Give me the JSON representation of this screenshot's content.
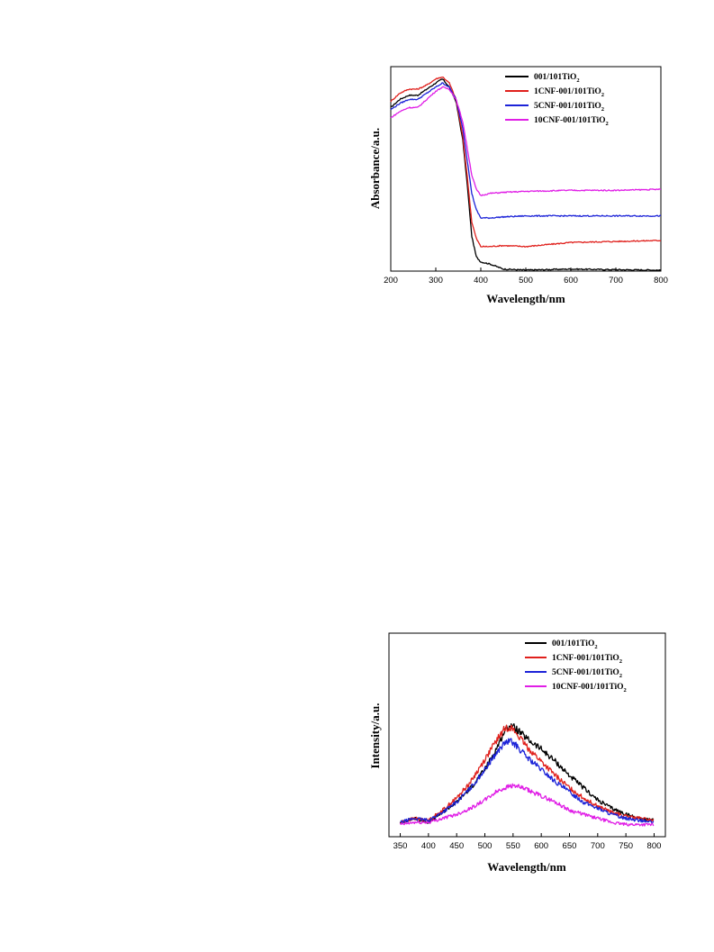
{
  "chart_data": [
    {
      "type": "line",
      "xlabel": "Wavelength/nm",
      "ylabel": "Absorbance/a.u.",
      "xlim": [
        200,
        800
      ],
      "xticks": [
        "200",
        "300",
        "400",
        "500",
        "600",
        "700",
        "800"
      ],
      "yticks": [],
      "ylim": [
        0,
        1
      ],
      "grid": false,
      "legend_position": "top-right",
      "series": [
        {
          "name": "001/101TiO2",
          "label_main": "001/101TiO",
          "label_sub": "2",
          "color": "#000000",
          "x": [
            200,
            220,
            240,
            260,
            280,
            300,
            315,
            330,
            345,
            360,
            370,
            380,
            390,
            400,
            420,
            450,
            500,
            600,
            700,
            800
          ],
          "y": [
            0.8,
            0.84,
            0.86,
            0.86,
            0.89,
            0.92,
            0.94,
            0.9,
            0.83,
            0.64,
            0.42,
            0.17,
            0.07,
            0.045,
            0.035,
            0.01,
            0.005,
            0.01,
            0.007,
            0.005
          ]
        },
        {
          "name": "1CNF-001/101TiO2",
          "label_main": "1CNF-001/101TiO",
          "label_sub": "2",
          "color": "#e0201c",
          "x": [
            200,
            220,
            240,
            260,
            280,
            300,
            315,
            330,
            345,
            360,
            370,
            380,
            390,
            400,
            420,
            450,
            500,
            600,
            700,
            800
          ],
          "y": [
            0.83,
            0.87,
            0.89,
            0.89,
            0.91,
            0.94,
            0.95,
            0.92,
            0.84,
            0.66,
            0.46,
            0.24,
            0.16,
            0.12,
            0.12,
            0.125,
            0.12,
            0.14,
            0.145,
            0.15
          ]
        },
        {
          "name": "5CNF-001/101TiO2",
          "label_main": "5CNF-001/101TiO",
          "label_sub": "2",
          "color": "#1c23d8",
          "x": [
            200,
            220,
            240,
            260,
            280,
            300,
            315,
            330,
            345,
            360,
            370,
            380,
            390,
            400,
            420,
            450,
            500,
            600,
            700,
            800
          ],
          "y": [
            0.79,
            0.82,
            0.84,
            0.84,
            0.87,
            0.9,
            0.92,
            0.9,
            0.84,
            0.7,
            0.54,
            0.38,
            0.3,
            0.26,
            0.26,
            0.265,
            0.27,
            0.27,
            0.27,
            0.27
          ]
        },
        {
          "name": "10CNF-001/101TiO2",
          "label_main": "10CNF-001/101TiO",
          "label_sub": "2",
          "color": "#e01ee6",
          "x": [
            200,
            220,
            240,
            260,
            280,
            300,
            315,
            330,
            345,
            360,
            370,
            380,
            390,
            400,
            420,
            450,
            500,
            600,
            700,
            800
          ],
          "y": [
            0.75,
            0.78,
            0.8,
            0.8,
            0.84,
            0.88,
            0.9,
            0.89,
            0.84,
            0.73,
            0.6,
            0.47,
            0.4,
            0.37,
            0.38,
            0.385,
            0.39,
            0.395,
            0.395,
            0.4
          ]
        }
      ]
    },
    {
      "type": "line",
      "xlabel": "Wavelength/nm",
      "ylabel": "Intensity/a.u.",
      "xlim": [
        330,
        820
      ],
      "xticks": [
        "350",
        "400",
        "450",
        "500",
        "550",
        "600",
        "650",
        "700",
        "750",
        "800"
      ],
      "yticks": [],
      "ylim": [
        0,
        1
      ],
      "grid": false,
      "legend_position": "top-right",
      "series": [
        {
          "name": "001/101TiO2",
          "label_main": "001/101TiO",
          "label_sub": "2",
          "color": "#000000",
          "x": [
            350,
            375,
            400,
            425,
            450,
            475,
            500,
            520,
            535,
            545,
            555,
            575,
            600,
            625,
            650,
            675,
            700,
            725,
            750,
            775,
            800
          ],
          "y": [
            0.07,
            0.09,
            0.07,
            0.12,
            0.17,
            0.24,
            0.33,
            0.43,
            0.52,
            0.55,
            0.53,
            0.48,
            0.43,
            0.37,
            0.3,
            0.24,
            0.18,
            0.14,
            0.11,
            0.09,
            0.08
          ]
        },
        {
          "name": "1CNF-001/101TiO2",
          "label_main": "1CNF-001/101TiO",
          "label_sub": "2",
          "color": "#e0201c",
          "x": [
            350,
            375,
            400,
            425,
            450,
            475,
            500,
            520,
            535,
            545,
            555,
            575,
            600,
            625,
            650,
            675,
            700,
            725,
            750,
            775,
            800
          ],
          "y": [
            0.07,
            0.09,
            0.08,
            0.13,
            0.19,
            0.27,
            0.38,
            0.47,
            0.53,
            0.54,
            0.51,
            0.44,
            0.37,
            0.3,
            0.24,
            0.19,
            0.15,
            0.12,
            0.1,
            0.09,
            0.08
          ]
        },
        {
          "name": "5CNF-001/101TiO2",
          "label_main": "5CNF-001/101TiO",
          "label_sub": "2",
          "color": "#1c23d8",
          "x": [
            350,
            375,
            400,
            425,
            450,
            475,
            500,
            520,
            535,
            545,
            555,
            575,
            600,
            625,
            650,
            675,
            700,
            725,
            750,
            775,
            800
          ],
          "y": [
            0.07,
            0.09,
            0.08,
            0.12,
            0.17,
            0.24,
            0.33,
            0.41,
            0.46,
            0.47,
            0.45,
            0.39,
            0.33,
            0.27,
            0.22,
            0.17,
            0.14,
            0.11,
            0.09,
            0.08,
            0.07
          ]
        },
        {
          "name": "10CNF-001/101TiO2",
          "label_main": "10CNF-001/101TiO",
          "label_sub": "2",
          "color": "#e01ee6",
          "x": [
            350,
            375,
            400,
            425,
            450,
            475,
            500,
            520,
            535,
            545,
            555,
            575,
            600,
            625,
            650,
            675,
            700,
            725,
            750,
            775,
            800
          ],
          "y": [
            0.06,
            0.07,
            0.07,
            0.09,
            0.11,
            0.14,
            0.18,
            0.22,
            0.24,
            0.25,
            0.25,
            0.23,
            0.2,
            0.17,
            0.13,
            0.11,
            0.09,
            0.07,
            0.06,
            0.06,
            0.06
          ]
        }
      ]
    }
  ]
}
